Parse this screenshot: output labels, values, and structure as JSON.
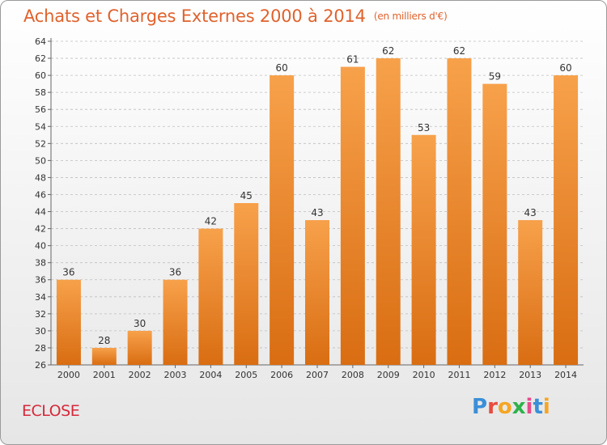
{
  "header": {
    "title": "Achats et Charges Externes 2000 à 2014",
    "subtitle": "(en milliers d'€)"
  },
  "footer": {
    "place": "ECLOSE",
    "brand_letters": [
      "P",
      "r",
      "o",
      "x",
      "i",
      "t",
      "i"
    ],
    "brand_colors": [
      "#3a8fd8",
      "#e84b3c",
      "#f5a623",
      "#2fb24c",
      "#e84b8a",
      "#3a8fd8",
      "#f5a623"
    ]
  },
  "colors": {
    "bar_top": "#f7a14b",
    "bar_bottom": "#d96d12",
    "grid": "#bfbfbf",
    "axis": "#666666",
    "text": "#333333"
  },
  "chart_data": {
    "type": "bar",
    "categories": [
      "2000",
      "2001",
      "2002",
      "2003",
      "2004",
      "2005",
      "2006",
      "2007",
      "2008",
      "2009",
      "2010",
      "2011",
      "2012",
      "2013",
      "2014"
    ],
    "values": [
      36,
      28,
      30,
      36,
      42,
      45,
      60,
      43,
      61,
      62,
      53,
      62,
      59,
      43,
      60
    ],
    "title": "Achats et Charges Externes 2000 à 2014",
    "subtitle": "(en milliers d'€)",
    "xlabel": "",
    "ylabel": "",
    "ylim": [
      26,
      64
    ],
    "ytick_step": 2,
    "grid": true,
    "legend": "none"
  }
}
